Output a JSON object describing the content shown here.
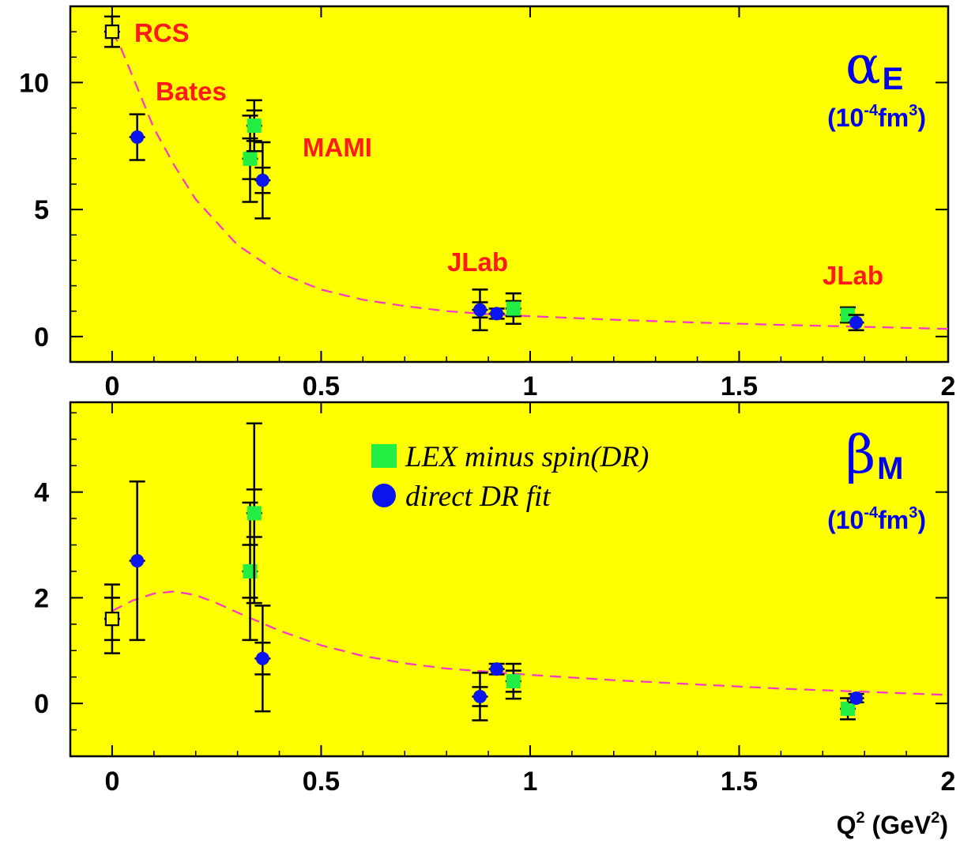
{
  "colors": {
    "plot_background": "#ffff00",
    "mami": "#22ee44",
    "dr_fit": "#0a14ee",
    "fit_curve": "#ff33cc",
    "facility_label": "#ff1a1a",
    "symbol_label": "#0000ee",
    "error_bar": "#000000"
  },
  "chart_data": [
    {
      "type": "scatter",
      "panel": "top",
      "quantity": {
        "symbol": "α",
        "subscript": "E",
        "unit_prefix": "(10",
        "unit_exponent": "-4",
        "unit_mid": "fm",
        "unit_power": "3",
        "unit_suffix": ")"
      },
      "xlim": [
        -0.1,
        2.0
      ],
      "ylim": [
        -1.0,
        13.0
      ],
      "x_ticks": [
        {
          "value": 0,
          "label": "0"
        },
        {
          "value": 0.5,
          "label": "0.5"
        },
        {
          "value": 1,
          "label": "1"
        },
        {
          "value": 1.5,
          "label": "1.5"
        },
        {
          "value": 2,
          "label": "2"
        }
      ],
      "y_ticks": [
        {
          "value": 0,
          "label": "0"
        },
        {
          "value": 5,
          "label": "5"
        },
        {
          "value": 10,
          "label": "10"
        }
      ],
      "annotations": [
        {
          "text": "RCS",
          "x": 0.05,
          "y": 12.0
        },
        {
          "text": "Bates",
          "x": 0.1,
          "y": 9.3
        },
        {
          "text": "MAMI",
          "x": 0.45,
          "y": 7.0
        },
        {
          "text": "JLab",
          "x": 0.8,
          "y": 2.4
        },
        {
          "text": "JLab",
          "x": 1.7,
          "y": 1.9
        }
      ],
      "series": [
        {
          "marker": "open-square",
          "points": [
            {
              "x": 0.0,
              "y": 12.0,
              "err": [
                0.6
              ],
              "sys": []
            }
          ]
        },
        {
          "name": "LEX minus spin(DR)",
          "marker": "square",
          "color": "#22ee44",
          "points": [
            {
              "x": 0.33,
              "y": 7.0,
              "err": [
                0.8,
                1.7
              ],
              "sys": []
            },
            {
              "x": 0.34,
              "y": 8.3,
              "err": [
                0.6,
                1.0
              ],
              "sys": []
            },
            {
              "x": 0.96,
              "y": 1.1,
              "err": [
                0.3,
                0.6
              ],
              "sys": []
            },
            {
              "x": 1.76,
              "y": 0.85,
              "err": [
                0.3
              ],
              "sys": []
            }
          ]
        },
        {
          "name": "direct DR fit",
          "marker": "circle",
          "color": "#0a14ee",
          "points": [
            {
              "x": 0.06,
              "y": 7.85,
              "err": [
                0.9
              ],
              "sys": []
            },
            {
              "x": 0.36,
              "y": 6.15,
              "err": [
                0.5,
                1.5
              ],
              "sys": []
            },
            {
              "x": 0.88,
              "y": 1.05,
              "err": [
                0.3,
                0.8
              ],
              "sys": []
            },
            {
              "x": 0.92,
              "y": 0.9,
              "err": [
                0.2
              ],
              "sys": []
            },
            {
              "x": 1.78,
              "y": 0.55,
              "err": [
                0.3
              ],
              "sys": []
            }
          ]
        },
        {
          "marker": "dashed-curve",
          "color": "#ff33cc",
          "points": [
            {
              "x": 0.0,
              "y": 12.0
            },
            {
              "x": 0.02,
              "y": 11.4
            },
            {
              "x": 0.05,
              "y": 10.2
            },
            {
              "x": 0.1,
              "y": 8.2
            },
            {
              "x": 0.15,
              "y": 6.7
            },
            {
              "x": 0.2,
              "y": 5.4
            },
            {
              "x": 0.3,
              "y": 3.6
            },
            {
              "x": 0.4,
              "y": 2.5
            },
            {
              "x": 0.5,
              "y": 1.85
            },
            {
              "x": 0.6,
              "y": 1.45
            },
            {
              "x": 0.7,
              "y": 1.2
            },
            {
              "x": 0.8,
              "y": 1.0
            },
            {
              "x": 0.9,
              "y": 0.88
            },
            {
              "x": 1.0,
              "y": 0.8
            },
            {
              "x": 1.2,
              "y": 0.66
            },
            {
              "x": 1.4,
              "y": 0.55
            },
            {
              "x": 1.6,
              "y": 0.46
            },
            {
              "x": 1.8,
              "y": 0.38
            },
            {
              "x": 2.0,
              "y": 0.3
            }
          ]
        }
      ]
    },
    {
      "type": "scatter",
      "panel": "bottom",
      "quantity": {
        "symbol": "β",
        "subscript": "M",
        "unit_prefix": "(10",
        "unit_exponent": "-4",
        "unit_mid": "fm",
        "unit_power": "3",
        "unit_suffix": ")"
      },
      "xlim": [
        -0.1,
        2.0
      ],
      "ylim": [
        -1.0,
        5.7
      ],
      "xlabel": {
        "main": "Q",
        "power": "2",
        "unit_open": "(GeV",
        "unit_power": "2",
        "unit_close": ")"
      },
      "x_ticks": [
        {
          "value": 0,
          "label": "0"
        },
        {
          "value": 0.5,
          "label": "0.5"
        },
        {
          "value": 1,
          "label": "1"
        },
        {
          "value": 1.5,
          "label": "1.5"
        },
        {
          "value": 2,
          "label": "2"
        }
      ],
      "y_ticks": [
        {
          "value": 0,
          "label": "0"
        },
        {
          "value": 2,
          "label": "2"
        },
        {
          "value": 4,
          "label": "4"
        }
      ],
      "legend": {
        "placement": "upper-center",
        "entries": [
          {
            "label": "LEX minus spin(DR)",
            "marker": "square",
            "color": "#22ee44"
          },
          {
            "label": "direct DR fit",
            "marker": "circle",
            "color": "#0a14ee"
          }
        ]
      },
      "series": [
        {
          "marker": "open-square",
          "points": [
            {
              "x": 0.0,
              "y": 1.6,
              "err": [
                0.4,
                0.65
              ],
              "sys": []
            }
          ]
        },
        {
          "name": "LEX minus spin(DR)",
          "marker": "square",
          "color": "#22ee44",
          "points": [
            {
              "x": 0.33,
              "y": 2.5,
              "err": [
                0.5,
                1.3
              ],
              "sys": []
            },
            {
              "x": 0.34,
              "y": 3.6,
              "err": [
                0.45,
                1.7
              ],
              "sys": []
            },
            {
              "x": 0.96,
              "y": 0.42,
              "err": [
                0.2,
                0.33
              ],
              "sys": []
            },
            {
              "x": 1.76,
              "y": -0.1,
              "err": [
                0.2
              ],
              "sys": []
            }
          ]
        },
        {
          "name": "direct DR fit",
          "marker": "circle",
          "color": "#0a14ee",
          "points": [
            {
              "x": 0.06,
              "y": 2.7,
              "err": [
                1.5
              ],
              "sys": []
            },
            {
              "x": 0.36,
              "y": 0.85,
              "err": [
                0.3,
                1.0
              ],
              "sys": []
            },
            {
              "x": 0.88,
              "y": 0.13,
              "err": [
                0.18,
                0.45
              ],
              "sys": []
            },
            {
              "x": 0.92,
              "y": 0.65,
              "err": [
                0.1
              ],
              "sys": []
            },
            {
              "x": 1.78,
              "y": 0.1,
              "err": [
                0.08
              ],
              "sys": []
            }
          ]
        },
        {
          "marker": "dashed-curve",
          "color": "#ff33cc",
          "points": [
            {
              "x": 0.0,
              "y": 1.75
            },
            {
              "x": 0.05,
              "y": 1.95
            },
            {
              "x": 0.1,
              "y": 2.08
            },
            {
              "x": 0.15,
              "y": 2.12
            },
            {
              "x": 0.2,
              "y": 2.05
            },
            {
              "x": 0.25,
              "y": 1.9
            },
            {
              "x": 0.3,
              "y": 1.72
            },
            {
              "x": 0.35,
              "y": 1.55
            },
            {
              "x": 0.4,
              "y": 1.38
            },
            {
              "x": 0.5,
              "y": 1.1
            },
            {
              "x": 0.6,
              "y": 0.9
            },
            {
              "x": 0.7,
              "y": 0.76
            },
            {
              "x": 0.8,
              "y": 0.66
            },
            {
              "x": 0.9,
              "y": 0.6
            },
            {
              "x": 1.0,
              "y": 0.54
            },
            {
              "x": 1.2,
              "y": 0.44
            },
            {
              "x": 1.4,
              "y": 0.36
            },
            {
              "x": 1.6,
              "y": 0.28
            },
            {
              "x": 1.8,
              "y": 0.22
            },
            {
              "x": 2.0,
              "y": 0.16
            }
          ]
        }
      ]
    }
  ]
}
